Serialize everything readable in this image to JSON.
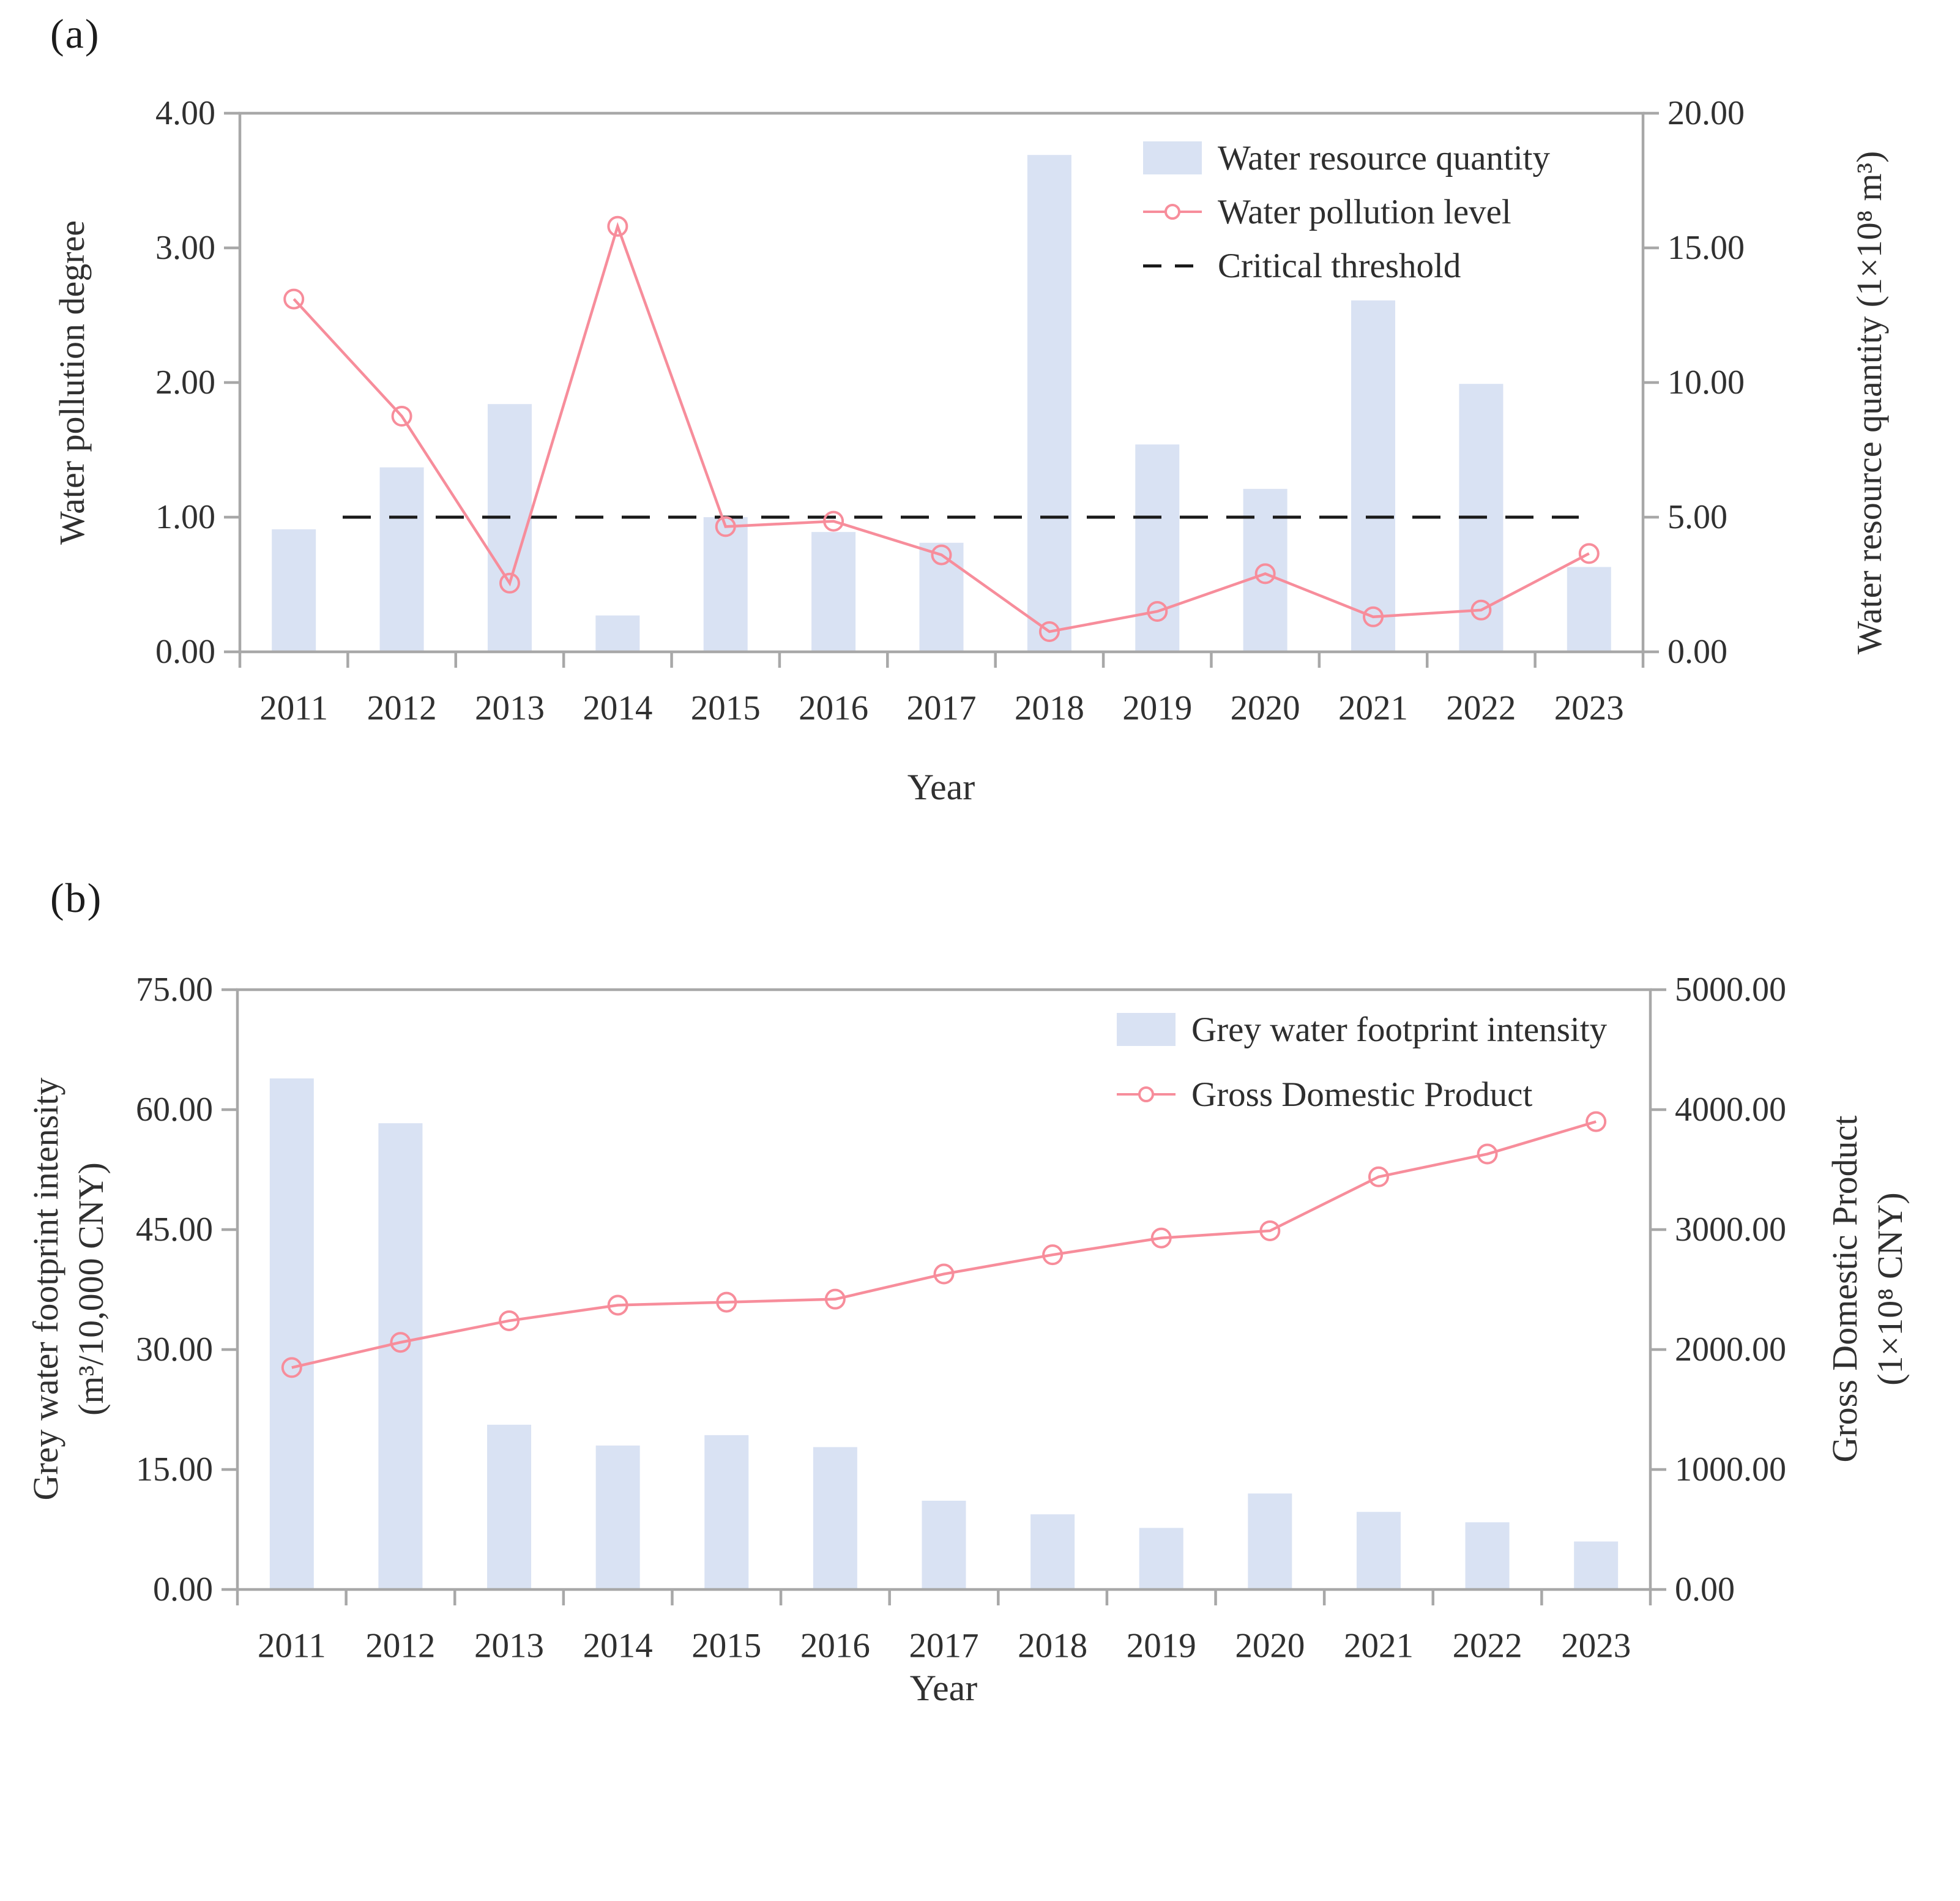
{
  "colors": {
    "bar_fill": "#d9e2f3",
    "line_pink": "#f78d9b",
    "threshold_black": "#1a1a1a",
    "axis_gray": "#a8a8a8",
    "text_dark": "#303030"
  },
  "figure": {
    "panel_a": {
      "tag": "(a)"
    },
    "panel_b": {
      "tag": "(b)"
    }
  },
  "chart_data": [
    {
      "type": "bar",
      "panel": "a",
      "categories": [
        "2011",
        "2012",
        "2013",
        "2014",
        "2015",
        "2016",
        "2017",
        "2018",
        "2019",
        "2020",
        "2021",
        "2022",
        "2023"
      ],
      "series": [
        {
          "name": "Water resource quantity",
          "plot": "bar",
          "axis": "right",
          "values": [
            4.55,
            6.85,
            9.2,
            1.35,
            5.0,
            4.45,
            4.05,
            18.45,
            7.7,
            6.05,
            13.05,
            9.95,
            3.15
          ]
        },
        {
          "name": "Water pollution level",
          "plot": "line",
          "axis": "left",
          "values": [
            2.62,
            1.75,
            0.51,
            3.16,
            0.93,
            0.97,
            0.72,
            0.15,
            0.3,
            0.58,
            0.26,
            0.31,
            0.73
          ]
        },
        {
          "name": "Critical threshold",
          "plot": "threshold",
          "axis": "left",
          "value": 1.0
        }
      ],
      "axes": {
        "left": {
          "label": "Water pollution degree",
          "min": 0,
          "max": 4,
          "ticks": [
            "0.00",
            "1.00",
            "2.00",
            "3.00",
            "4.00"
          ]
        },
        "right": {
          "label": "Water resource quantity (1×10⁸ m³)",
          "min": 0,
          "max": 20,
          "ticks": [
            "0.00",
            "5.00",
            "10.00",
            "15.00",
            "20.00"
          ]
        },
        "x": {
          "label": "Year"
        }
      },
      "legend_position": "top-right",
      "grid": false
    },
    {
      "type": "bar",
      "panel": "b",
      "categories": [
        "2011",
        "2012",
        "2013",
        "2014",
        "2015",
        "2016",
        "2017",
        "2018",
        "2019",
        "2020",
        "2021",
        "2022",
        "2023"
      ],
      "series": [
        {
          "name": "Grey water footprint intensity",
          "plot": "bar",
          "axis": "left",
          "values": [
            63.9,
            58.3,
            20.6,
            18.0,
            19.3,
            17.8,
            11.1,
            9.4,
            7.7,
            12.0,
            9.7,
            8.4,
            6.0
          ]
        },
        {
          "name": "Gross Domestic Product",
          "plot": "line",
          "axis": "right",
          "values": [
            1850,
            2060,
            2240,
            2370,
            2395,
            2420,
            2630,
            2790,
            2930,
            2990,
            3440,
            3630,
            3900
          ]
        }
      ],
      "axes": {
        "left": {
          "label_line1": "Grey water footprint intensity",
          "label_line2": "(m³/10,000 CNY)",
          "min": 0,
          "max": 75,
          "ticks": [
            "0.00",
            "15.00",
            "30.00",
            "45.00",
            "60.00",
            "75.00"
          ]
        },
        "right": {
          "label_line1": "Gross Domestic Product",
          "label_line2": "(1×10⁸ CNY)",
          "min": 0,
          "max": 5000,
          "ticks": [
            "0.00",
            "1000.00",
            "2000.00",
            "3000.00",
            "4000.00",
            "5000.00"
          ]
        },
        "x": {
          "label": "Year"
        }
      },
      "legend_position": "top-right",
      "grid": false
    }
  ]
}
